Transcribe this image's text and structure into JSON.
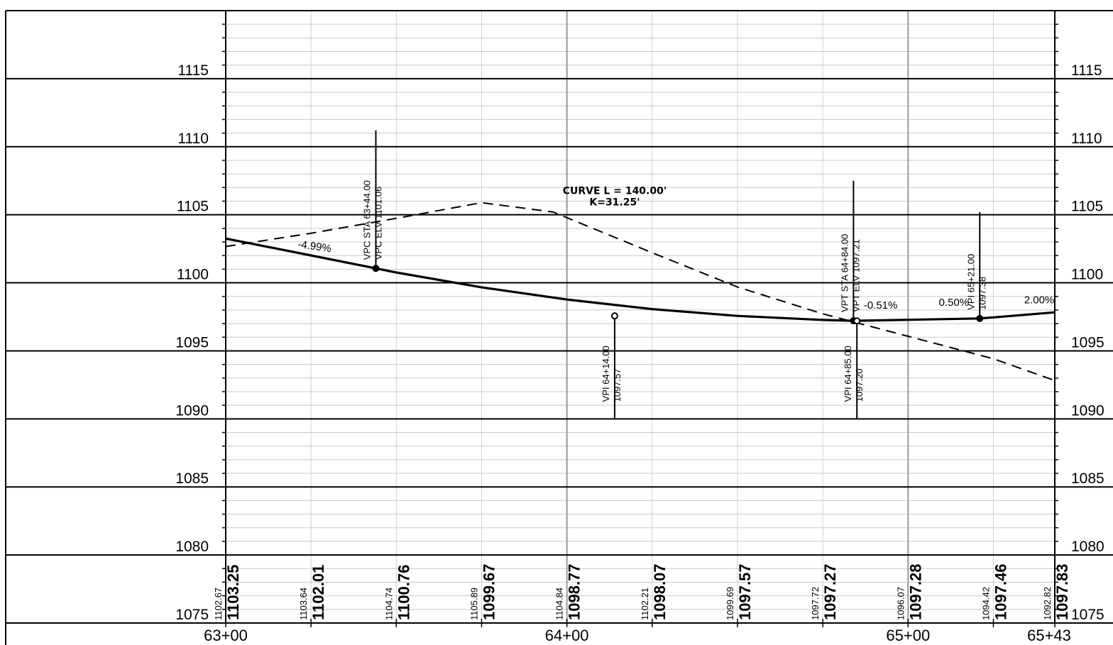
{
  "chart_data": {
    "type": "line",
    "title": "",
    "xlabel": "",
    "ylabel": "",
    "xlim_ft": [
      6300,
      6543
    ],
    "ylim": [
      1075,
      1120
    ],
    "y_ticks": [
      1080,
      1085,
      1090,
      1095,
      1100,
      1105,
      1110,
      1115
    ],
    "y_tick_labels": [
      "1080",
      "1085",
      "1090",
      "1095",
      "1100",
      "1105",
      "1110",
      "1115"
    ],
    "bottom_elev_label": "1075",
    "station_labels": [
      {
        "station_ft": 6300,
        "label": "63+00"
      },
      {
        "station_ft": 6400,
        "label": "64+00"
      },
      {
        "station_ft": 6500,
        "label": "65+00"
      },
      {
        "station_ft": 6543,
        "label": "65+43"
      }
    ],
    "series": [
      {
        "line_style": "solid",
        "points": [
          {
            "x": 6300,
            "y": 1103.25
          },
          {
            "x": 6325,
            "y": 1102.01
          },
          {
            "x": 6344,
            "y": 1101.06
          },
          {
            "x": 6350,
            "y": 1100.76
          },
          {
            "x": 6375,
            "y": 1099.67
          },
          {
            "x": 6400,
            "y": 1098.77
          },
          {
            "x": 6425,
            "y": 1098.07
          },
          {
            "x": 6450,
            "y": 1097.57
          },
          {
            "x": 6475,
            "y": 1097.27
          },
          {
            "x": 6484,
            "y": 1097.21
          },
          {
            "x": 6500,
            "y": 1097.28
          },
          {
            "x": 6521,
            "y": 1097.38
          },
          {
            "x": 6525,
            "y": 1097.46
          },
          {
            "x": 6543,
            "y": 1097.83
          }
        ]
      },
      {
        "line_style": "dashed",
        "points": [
          {
            "x": 6300,
            "y": 1102.67
          },
          {
            "x": 6325,
            "y": 1103.64
          },
          {
            "x": 6350,
            "y": 1104.74
          },
          {
            "x": 6375,
            "y": 1105.89
          },
          {
            "x": 6396,
            "y": 1105.2
          },
          {
            "x": 6425,
            "y": 1102.21
          },
          {
            "x": 6450,
            "y": 1099.69
          },
          {
            "x": 6475,
            "y": 1097.72
          },
          {
            "x": 6500,
            "y": 1096.07
          },
          {
            "x": 6525,
            "y": 1094.42
          },
          {
            "x": 6543,
            "y": 1092.82
          }
        ]
      }
    ],
    "bottom_values": [
      {
        "station_ft": 6300,
        "existing": "1102.67",
        "proposed": "1103.25"
      },
      {
        "station_ft": 6325,
        "existing": "1103.64",
        "proposed": "1102.01"
      },
      {
        "station_ft": 6350,
        "existing": "1104.74",
        "proposed": "1100.76"
      },
      {
        "station_ft": 6375,
        "existing": "1105.89",
        "proposed": "1099.67"
      },
      {
        "station_ft": 6400,
        "existing": "1104.84",
        "proposed": "1098.77"
      },
      {
        "station_ft": 6425,
        "existing": "1102.21",
        "proposed": "1098.07"
      },
      {
        "station_ft": 6450,
        "existing": "1099.69",
        "proposed": "1097.57"
      },
      {
        "station_ft": 6475,
        "existing": "1097.72",
        "proposed": "1097.27"
      },
      {
        "station_ft": 6500,
        "existing": "1096.07",
        "proposed": "1097.28"
      },
      {
        "station_ft": 6525,
        "existing": "1094.42",
        "proposed": "1097.46"
      },
      {
        "station_ft": 6543,
        "existing": "1092.82",
        "proposed": "1097.83"
      }
    ],
    "vertical_points": [
      {
        "name": "vpc",
        "x": 6344,
        "y": 1101.06,
        "lines": [
          "VPC STA 63+44.00",
          "VPC ELV 1101.06"
        ],
        "stem_top": 1111.2,
        "stem_bottom": 1101.06,
        "text_side": "above"
      },
      {
        "name": "vpi-1",
        "x": 6414,
        "y": 1097.57,
        "lines": [
          "VPI 64+14.00",
          "1097.57"
        ],
        "stem_top": 1097.57,
        "stem_bottom": 1090.0,
        "text_side": "below"
      },
      {
        "name": "vpt",
        "x": 6484,
        "y": 1097.21,
        "lines": [
          "VPT STA 64+84.00",
          "VPT ELV 1097.21"
        ],
        "stem_top": 1107.5,
        "stem_bottom": 1097.21,
        "text_side": "above"
      },
      {
        "name": "vpi-2",
        "x": 6485,
        "y": 1097.2,
        "lines": [
          "VPI 64+85.00",
          "1097.20"
        ],
        "stem_top": 1097.2,
        "stem_bottom": 1090.0,
        "text_side": "below"
      },
      {
        "name": "vpi-3",
        "x": 6521,
        "y": 1097.38,
        "lines": [
          "VPI 65+21.00",
          "1097.38"
        ],
        "stem_top": 1105.2,
        "stem_bottom": 1097.38,
        "text_side": "above"
      }
    ],
    "grade_labels": [
      {
        "text": "-4.99%",
        "x": 6321,
        "y": 1102.6,
        "rotate": 8
      },
      {
        "text": "-0.51%",
        "x": 6487,
        "y": 1098.1,
        "rotate": 0
      },
      {
        "text": "0.50%",
        "x": 6509,
        "y": 1098.3,
        "rotate": 0
      },
      {
        "text": "2.00%",
        "x": 6534,
        "y": 1098.5,
        "rotate": 0
      }
    ],
    "curve_note": {
      "line1": "CURVE L = 140.00'",
      "line2": "K=31.25'",
      "x": 6414,
      "y": 1106.0
    }
  }
}
